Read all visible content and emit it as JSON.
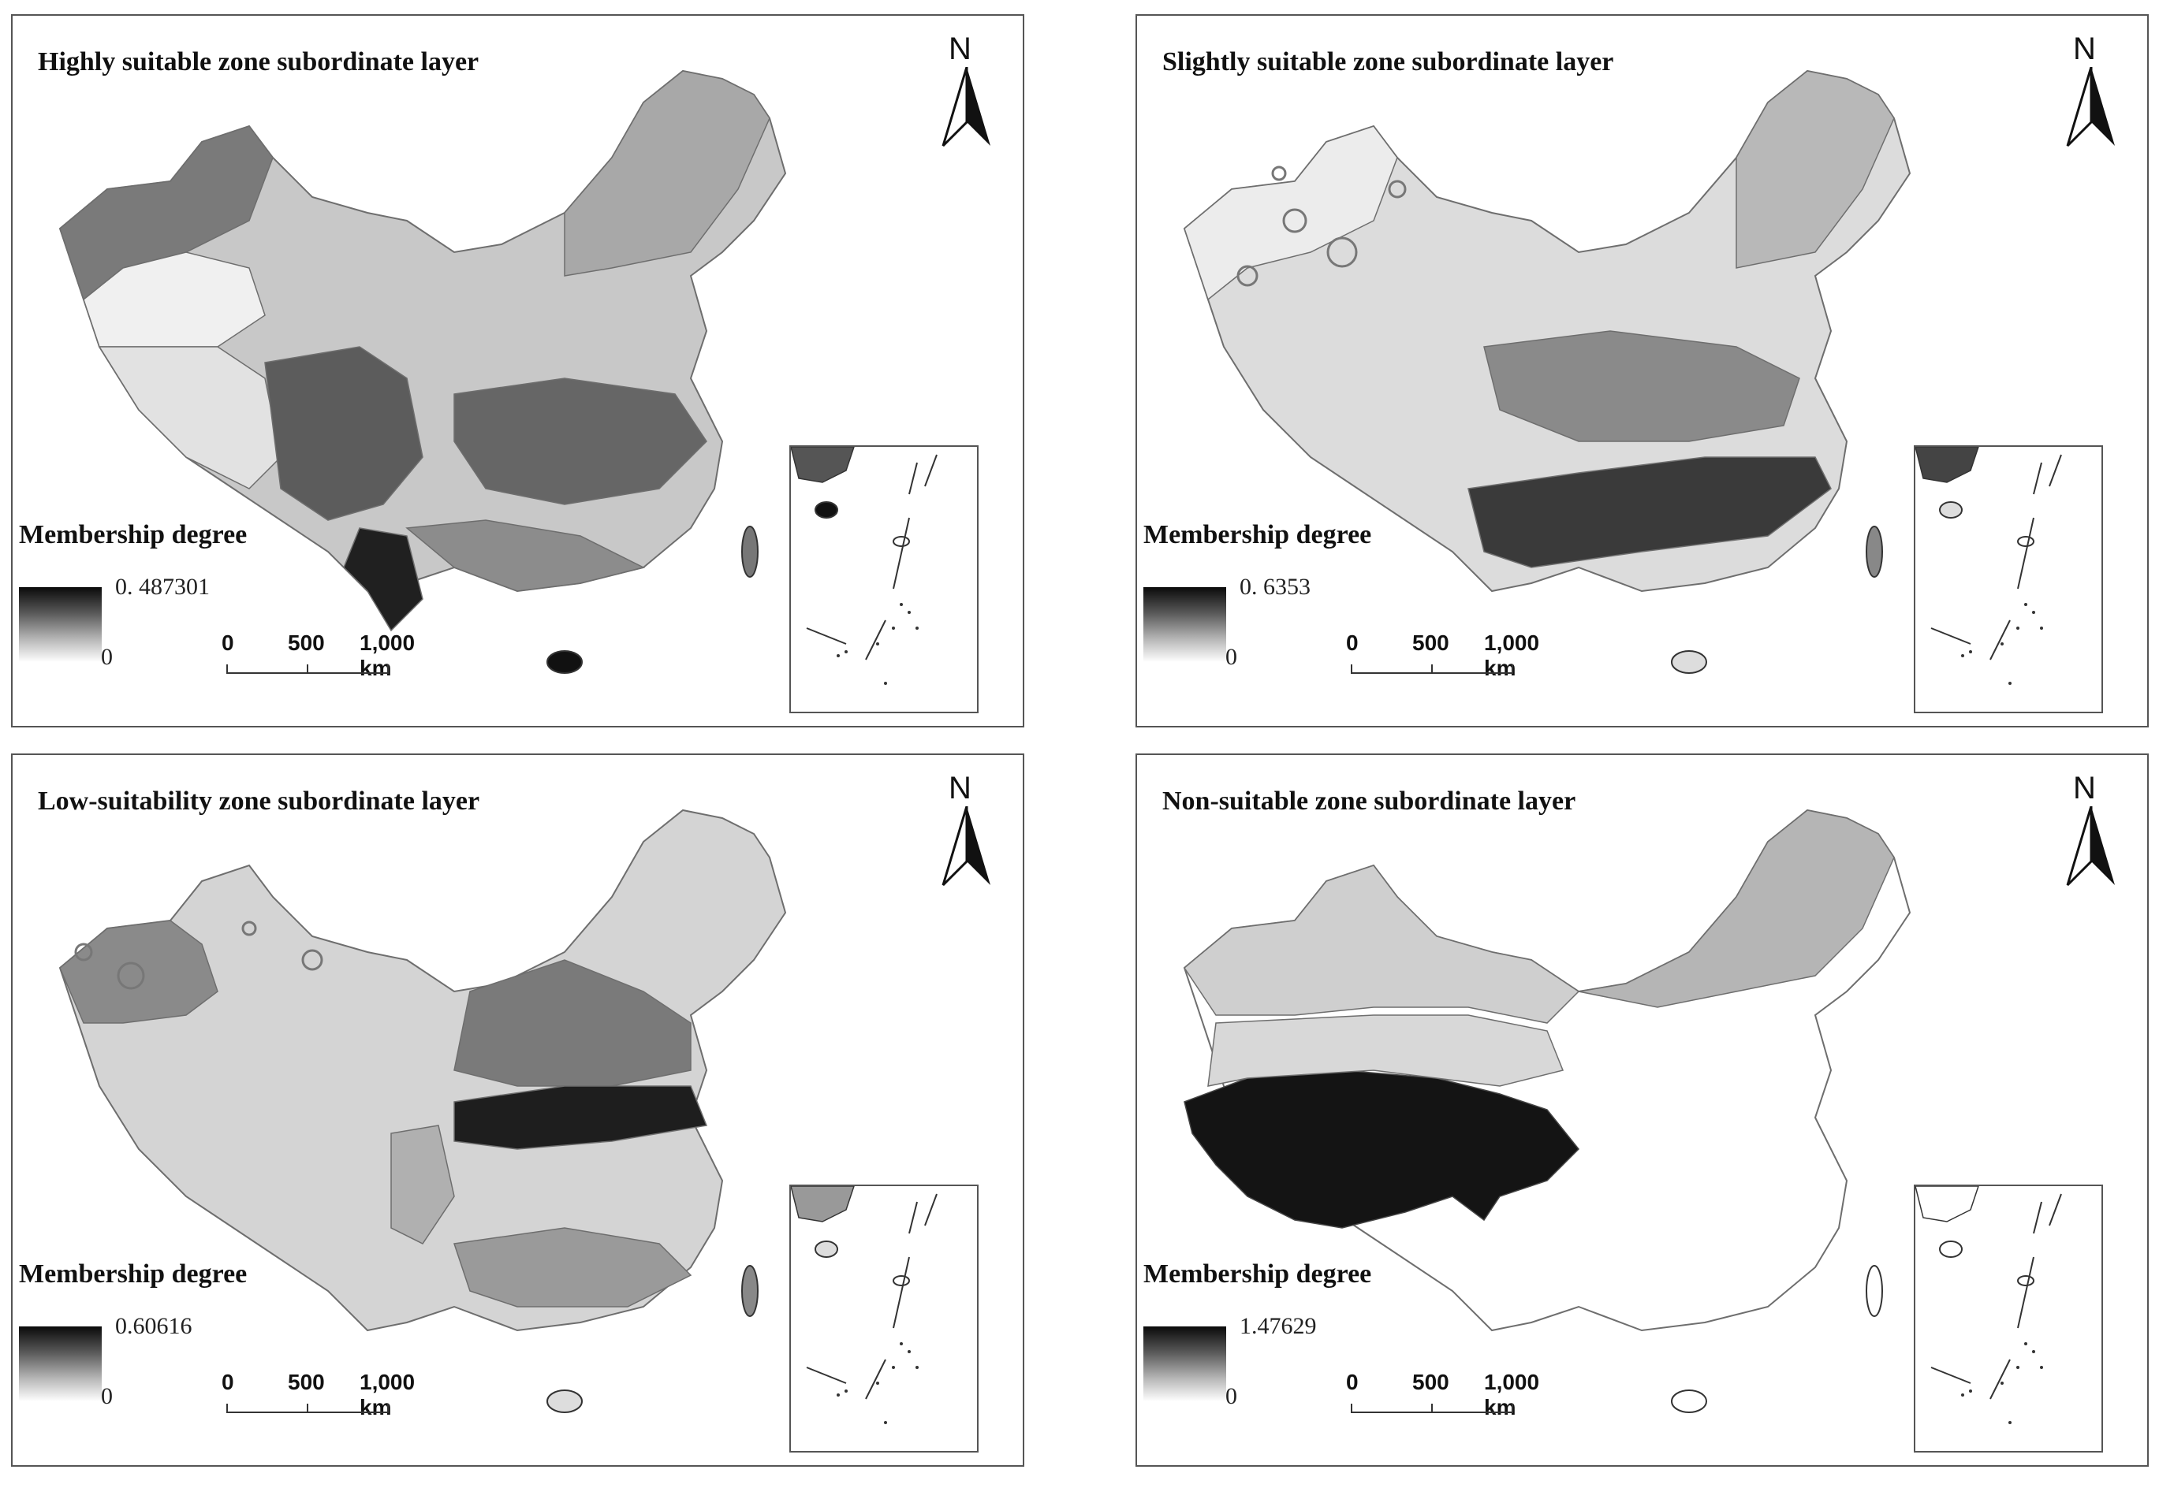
{
  "colors": {
    "border": "#555555",
    "boundary": "#6e6e6e",
    "high_membership": "#0a0a0a",
    "low_membership": "#ffffff"
  },
  "panels": [
    {
      "title": "Highly suitable zone subordinate layer",
      "legend_title": "Membership degree",
      "legend_max": "0. 487301",
      "legend_min": "0",
      "north_label": "N",
      "scale_labels": [
        "0",
        "500",
        "1,000 km"
      ]
    },
    {
      "title": "Slightly suitable zone subordinate layer",
      "legend_title": "Membership degree",
      "legend_max": "0. 6353",
      "legend_min": "0",
      "north_label": "N",
      "scale_labels": [
        "0",
        "500",
        "1,000 km"
      ]
    },
    {
      "title": "Low-suitability zone subordinate layer",
      "legend_title": "Membership degree",
      "legend_max": "0.60616",
      "legend_min": "0",
      "north_label": "N",
      "scale_labels": [
        "0",
        "500",
        "1,000 km"
      ]
    },
    {
      "title": "Non-suitable zone subordinate layer",
      "legend_title": "Membership degree",
      "legend_max": "1.47629",
      "legend_min": "0",
      "north_label": "N",
      "scale_labels": [
        "0",
        "500",
        "1,000 km"
      ]
    }
  ]
}
